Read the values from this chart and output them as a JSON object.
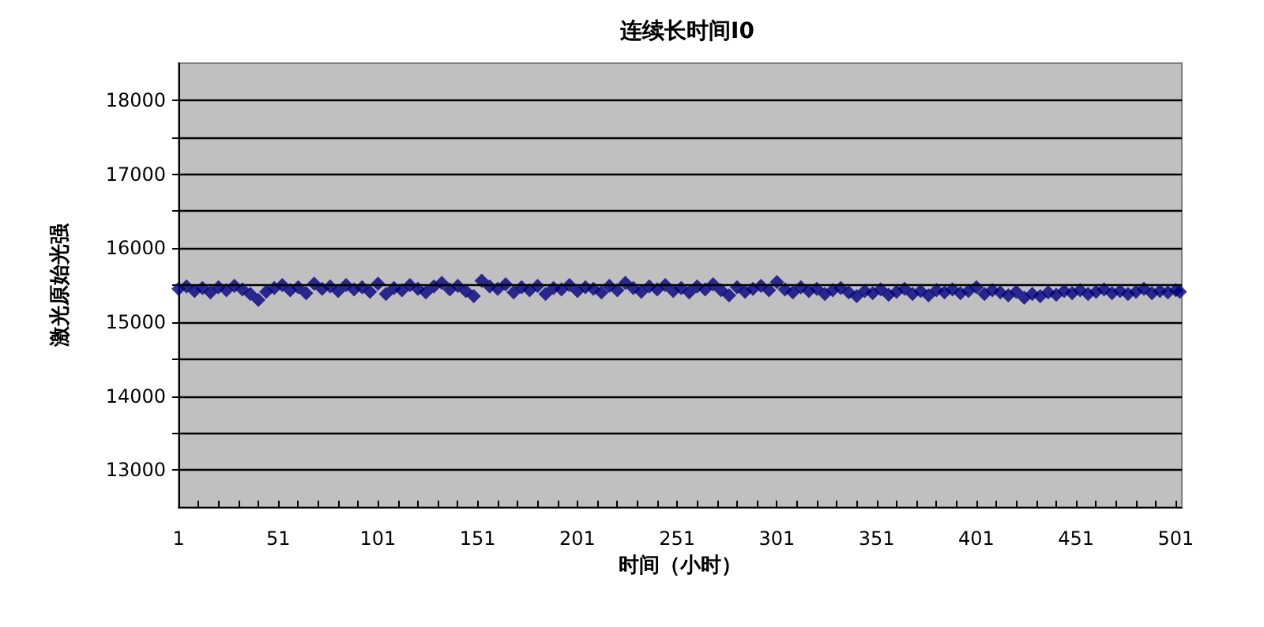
{
  "chart_data": {
    "type": "scatter",
    "title": "连续长时间I0",
    "xlabel": "时间（小时）",
    "ylabel": "激光原始光强",
    "x": [
      1,
      5,
      9,
      13,
      17,
      21,
      25,
      29,
      33,
      37,
      41,
      45,
      49,
      53,
      57,
      61,
      65,
      69,
      73,
      77,
      81,
      85,
      89,
      93,
      97,
      101,
      105,
      109,
      113,
      117,
      121,
      125,
      129,
      133,
      137,
      141,
      145,
      149,
      153,
      157,
      161,
      165,
      169,
      173,
      177,
      181,
      185,
      189,
      193,
      197,
      201,
      205,
      209,
      213,
      217,
      221,
      225,
      229,
      233,
      237,
      241,
      245,
      249,
      253,
      257,
      261,
      265,
      269,
      273,
      277,
      281,
      285,
      289,
      293,
      297,
      301,
      305,
      309,
      313,
      317,
      321,
      325,
      329,
      333,
      337,
      341,
      345,
      349,
      353,
      357,
      361,
      365,
      369,
      373,
      377,
      381,
      385,
      389,
      393,
      397,
      401,
      405,
      409,
      413,
      417,
      421,
      425,
      429,
      433,
      437,
      441,
      445,
      449,
      453,
      457,
      461,
      465,
      469,
      473,
      477,
      481,
      485,
      489,
      493,
      497,
      501,
      503
    ],
    "series": [
      {
        "color": "#000080",
        "values": [
          15450,
          15480,
          15420,
          15460,
          15400,
          15470,
          15430,
          15490,
          15440,
          15380,
          15300,
          15410,
          15460,
          15500,
          15430,
          15470,
          15390,
          15520,
          15450,
          15480,
          15420,
          15500,
          15440,
          15470,
          15410,
          15520,
          15380,
          15460,
          15430,
          15500,
          15450,
          15400,
          15480,
          15530,
          15440,
          15490,
          15420,
          15350,
          15560,
          15480,
          15450,
          15510,
          15400,
          15470,
          15430,
          15490,
          15380,
          15460,
          15440,
          15500,
          15420,
          15470,
          15450,
          15400,
          15490,
          15430,
          15530,
          15460,
          15410,
          15480,
          15440,
          15500,
          15420,
          15460,
          15400,
          15480,
          15440,
          15510,
          15430,
          15360,
          15470,
          15410,
          15450,
          15490,
          15430,
          15540,
          15440,
          15400,
          15470,
          15420,
          15450,
          15380,
          15430,
          15460,
          15400,
          15350,
          15420,
          15390,
          15440,
          15370,
          15410,
          15450,
          15380,
          15420,
          15360,
          15430,
          15400,
          15440,
          15390,
          15420,
          15470,
          15380,
          15430,
          15400,
          15360,
          15410,
          15330,
          15380,
          15350,
          15400,
          15370,
          15420,
          15390,
          15430,
          15380,
          15410,
          15440,
          15390,
          15420,
          15380,
          15410,
          15450,
          15390,
          15420,
          15400,
          15430,
          15410
        ]
      }
    ],
    "xlim": [
      1,
      504
    ],
    "xticks": [
      1,
      {
        "value": 11,
        "label": null
      },
      {
        "value": 21,
        "label": null
      },
      {
        "value": 31,
        "label": null
      },
      {
        "value": 41,
        "label": null
      },
      51,
      {
        "value": 61,
        "label": null
      },
      {
        "value": 71,
        "label": null
      },
      {
        "value": 81,
        "label": null
      },
      {
        "value": 91,
        "label": null
      },
      101,
      {
        "value": 111,
        "label": null
      },
      {
        "value": 121,
        "label": null
      },
      {
        "value": 131,
        "label": null
      },
      {
        "value": 141,
        "label": null
      },
      151,
      {
        "value": 161,
        "label": null
      },
      {
        "value": 171,
        "label": null
      },
      {
        "value": 181,
        "label": null
      },
      {
        "value": 191,
        "label": null
      },
      201,
      {
        "value": 211,
        "label": null
      },
      {
        "value": 221,
        "label": null
      },
      {
        "value": 231,
        "label": null
      },
      {
        "value": 241,
        "label": null
      },
      251,
      {
        "value": 261,
        "label": null
      },
      {
        "value": 271,
        "label": null
      },
      {
        "value": 281,
        "label": null
      },
      {
        "value": 291,
        "label": null
      },
      301,
      {
        "value": 311,
        "label": null
      },
      {
        "value": 321,
        "label": null
      },
      {
        "value": 331,
        "label": null
      },
      {
        "value": 341,
        "label": null
      },
      351,
      {
        "value": 361,
        "label": null
      },
      {
        "value": 371,
        "label": null
      },
      {
        "value": 381,
        "label": null
      },
      {
        "value": 391,
        "label": null
      },
      401,
      {
        "value": 411,
        "label": null
      },
      {
        "value": 421,
        "label": null
      },
      {
        "value": 431,
        "label": null
      },
      {
        "value": 441,
        "label": null
      },
      451,
      {
        "value": 461,
        "label": null
      },
      {
        "value": 471,
        "label": null
      },
      {
        "value": 481,
        "label": null
      },
      {
        "value": 491,
        "label": null
      },
      501
    ],
    "ylim": [
      12500,
      18500
    ],
    "yticks": [
      13000,
      {
        "value": 13500,
        "label": null
      },
      14000,
      {
        "value": 14500,
        "label": null
      },
      15000,
      {
        "value": 15500,
        "label": null
      },
      16000,
      {
        "value": 16500,
        "label": null
      },
      17000,
      {
        "value": 17500,
        "label": null
      },
      18000
    ],
    "grid": "y",
    "marker": "diamond"
  }
}
